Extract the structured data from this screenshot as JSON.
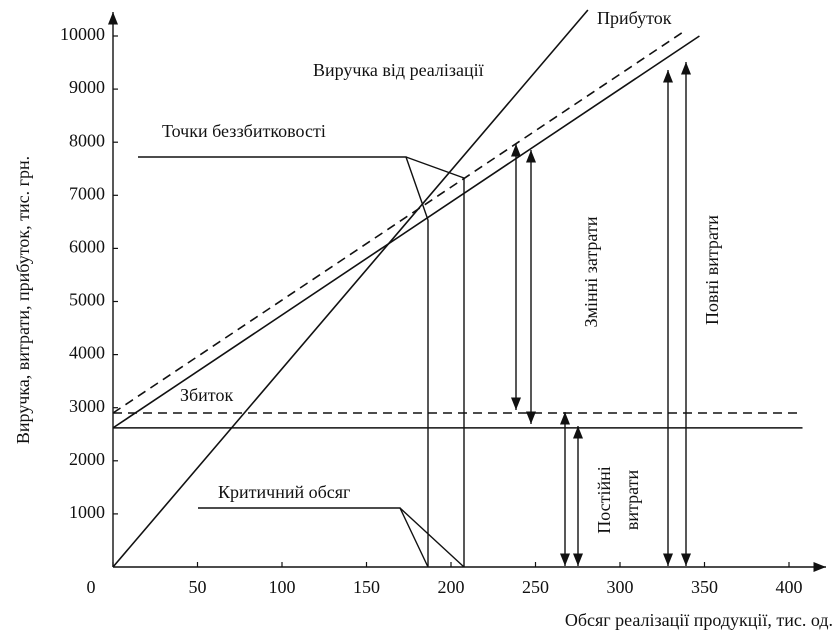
{
  "chart_data": {
    "type": "line",
    "x_label": "Обсяг реалізації продукції, тис. од.",
    "y_label": "Виручка, витрати, прибуток, тис. грн.",
    "xlim": [
      0,
      400
    ],
    "ylim": [
      0,
      10000
    ],
    "xticks": [
      0,
      50,
      100,
      150,
      200,
      250,
      300,
      350,
      400
    ],
    "yticks": [
      1000,
      2000,
      3000,
      4000,
      5000,
      6000,
      7000,
      8000,
      9000,
      10000
    ],
    "series": [
      {
        "color": "#111111",
        "dashed": false,
        "x": [
          0,
          281
        ],
        "values": [
          0,
          10490
        ]
      },
      {
        "color": "#111111",
        "dashed": false,
        "x": [
          0,
          347
        ],
        "values": [
          2620,
          10000
        ]
      },
      {
        "color": "#111111",
        "dashed": true,
        "x": [
          0,
          339
        ],
        "values": [
          2900,
          10110
        ]
      },
      {
        "color": "#111111",
        "dashed": false,
        "x": [
          0,
          408
        ],
        "values": [
          2620,
          2620
        ]
      },
      {
        "color": "#111111",
        "dashed": true,
        "x": [
          0,
          408
        ],
        "values": [
          2900,
          2900
        ]
      }
    ],
    "annotations": [
      "Прибуток",
      "Виручка від реалізації",
      "Точки беззбитковості",
      "Збиток",
      "Критичний обсяг",
      "Змінні затрати",
      "Постійні",
      "витрати",
      "Повні витрати"
    ]
  }
}
